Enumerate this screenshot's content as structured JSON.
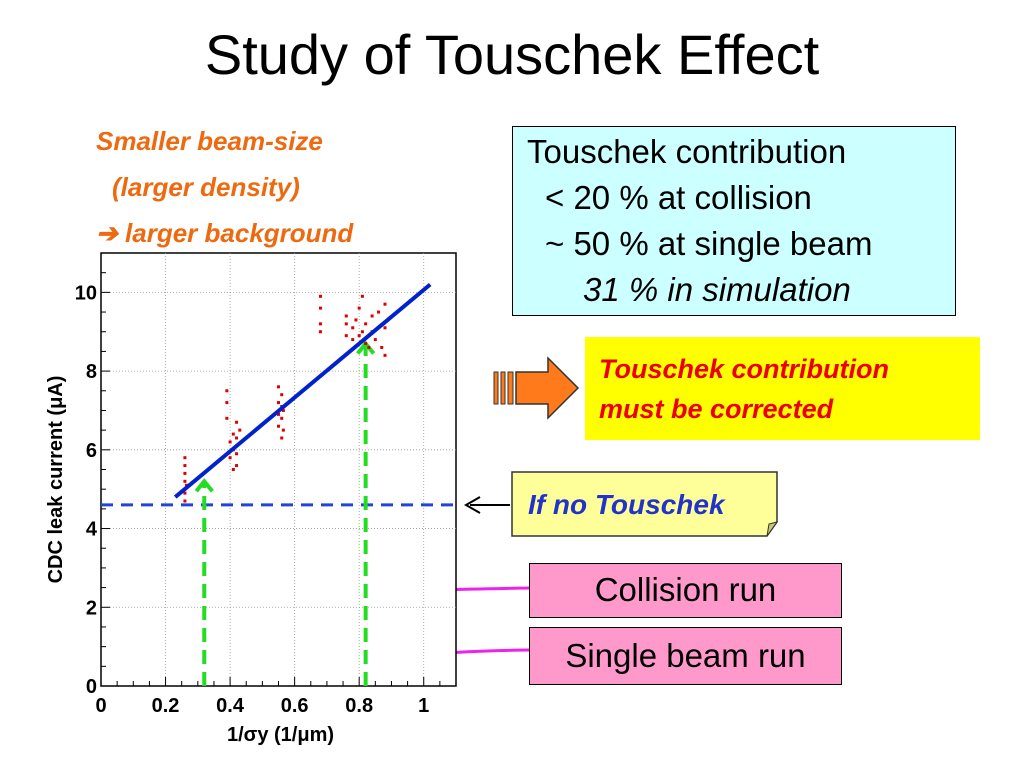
{
  "title": "Study of Touschek Effect",
  "orange_note": {
    "line1": "Smaller beam-size",
    "line2": "(larger density)",
    "line3": "larger background",
    "color": "#ee6a10"
  },
  "touschek_box": {
    "line1": "Touschek contribution",
    "line2": "< 20 % at collision",
    "line3": "~ 50 % at single beam",
    "line4": "31 % in simulation",
    "background": "#ccffff"
  },
  "correction_box": {
    "line1": "Touschek contribution",
    "line2": "must be corrected",
    "background": "#ffff00",
    "text_color": "#ee0000"
  },
  "if_no_touschek": {
    "label": "If no Touschek",
    "color": "#2233cc",
    "background": "#ffff99"
  },
  "collision_run": {
    "label": "Collision run",
    "background": "#ff99cc"
  },
  "single_beam_run": {
    "label": "Single beam run",
    "background": "#ff99cc"
  },
  "chart_data": {
    "type": "scatter",
    "xlabel": "1/σy (1/μm)",
    "ylabel": "CDC leak current (μA)",
    "xlim": [
      0,
      1.1
    ],
    "ylim": [
      0,
      11
    ],
    "xticks": [
      "0",
      "0.2",
      "0.4",
      "0.6",
      "0.8",
      "1"
    ],
    "yticks": [
      "0",
      "2",
      "4",
      "6",
      "8",
      "10"
    ],
    "grid": true,
    "series": [
      {
        "type": "scatter",
        "color": "#dd0000",
        "points": [
          {
            "x": 0.26,
            "y": 4.7
          },
          {
            "x": 0.26,
            "y": 4.9
          },
          {
            "x": 0.26,
            "y": 5.0
          },
          {
            "x": 0.26,
            "y": 5.2
          },
          {
            "x": 0.26,
            "y": 5.4
          },
          {
            "x": 0.26,
            "y": 5.6
          },
          {
            "x": 0.26,
            "y": 5.8
          },
          {
            "x": 0.265,
            "y": 5.1
          },
          {
            "x": 0.39,
            "y": 6.8
          },
          {
            "x": 0.39,
            "y": 7.2
          },
          {
            "x": 0.39,
            "y": 7.5
          },
          {
            "x": 0.4,
            "y": 6.2
          },
          {
            "x": 0.4,
            "y": 5.8
          },
          {
            "x": 0.41,
            "y": 5.5
          },
          {
            "x": 0.41,
            "y": 6.0
          },
          {
            "x": 0.41,
            "y": 6.4
          },
          {
            "x": 0.42,
            "y": 5.9
          },
          {
            "x": 0.42,
            "y": 6.3
          },
          {
            "x": 0.42,
            "y": 6.7
          },
          {
            "x": 0.42,
            "y": 5.6
          },
          {
            "x": 0.42,
            "y": 6.1
          },
          {
            "x": 0.43,
            "y": 6.5
          },
          {
            "x": 0.55,
            "y": 6.6
          },
          {
            "x": 0.55,
            "y": 6.9
          },
          {
            "x": 0.55,
            "y": 7.2
          },
          {
            "x": 0.55,
            "y": 7.6
          },
          {
            "x": 0.56,
            "y": 6.3
          },
          {
            "x": 0.56,
            "y": 6.8
          },
          {
            "x": 0.56,
            "y": 7.1
          },
          {
            "x": 0.56,
            "y": 7.4
          },
          {
            "x": 0.565,
            "y": 7.0
          },
          {
            "x": 0.565,
            "y": 6.5
          },
          {
            "x": 0.68,
            "y": 9.6
          },
          {
            "x": 0.68,
            "y": 9.9
          },
          {
            "x": 0.68,
            "y": 9.2
          },
          {
            "x": 0.68,
            "y": 9.0
          },
          {
            "x": 0.76,
            "y": 8.9
          },
          {
            "x": 0.76,
            "y": 9.2
          },
          {
            "x": 0.76,
            "y": 9.4
          },
          {
            "x": 0.78,
            "y": 8.8
          },
          {
            "x": 0.78,
            "y": 9.1
          },
          {
            "x": 0.79,
            "y": 9.3
          },
          {
            "x": 0.8,
            "y": 8.9
          },
          {
            "x": 0.8,
            "y": 9.6
          },
          {
            "x": 0.81,
            "y": 9.9
          },
          {
            "x": 0.81,
            "y": 9.0
          },
          {
            "x": 0.82,
            "y": 8.7
          },
          {
            "x": 0.82,
            "y": 9.2
          },
          {
            "x": 0.83,
            "y": 8.6
          },
          {
            "x": 0.84,
            "y": 9.0
          },
          {
            "x": 0.84,
            "y": 9.4
          },
          {
            "x": 0.85,
            "y": 8.8
          },
          {
            "x": 0.86,
            "y": 9.5
          },
          {
            "x": 0.87,
            "y": 8.6
          },
          {
            "x": 0.88,
            "y": 9.1
          },
          {
            "x": 0.88,
            "y": 8.4
          },
          {
            "x": 0.88,
            "y": 9.7
          }
        ]
      },
      {
        "type": "line",
        "color": "#0022cc",
        "points": [
          {
            "x": 0.23,
            "y": 4.8
          },
          {
            "x": 1.02,
            "y": 10.2
          }
        ]
      }
    ],
    "reference_lines": [
      {
        "type": "hline",
        "y": 4.6,
        "color": "#2244dd",
        "dashed": true
      },
      {
        "type": "vline",
        "x": 0.32,
        "y_from": 0,
        "y_to": 5.2,
        "color": "#22dd22",
        "dashed": true
      },
      {
        "type": "vline",
        "x": 0.82,
        "y_from": 0,
        "y_to": 8.7,
        "color": "#22dd22",
        "dashed": true
      }
    ]
  }
}
